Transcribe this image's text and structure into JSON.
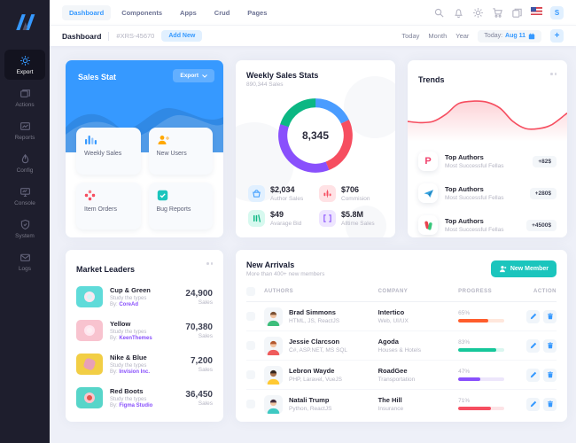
{
  "topbar": {
    "nav": [
      {
        "label": "Dashboard",
        "active": true
      },
      {
        "label": "Components",
        "active": false
      },
      {
        "label": "Apps",
        "active": false
      },
      {
        "label": "Crud",
        "active": false
      },
      {
        "label": "Pages",
        "active": false
      }
    ],
    "icons": [
      {
        "name": "search-icon"
      },
      {
        "name": "bell-icon"
      },
      {
        "name": "gear-icon"
      },
      {
        "name": "cart-icon"
      },
      {
        "name": "copy-icon"
      },
      {
        "name": "us-flag-icon"
      }
    ],
    "avatar_label": "S"
  },
  "toolbar": {
    "title": "Dashboard",
    "reference": "#XRS-45670",
    "add_new": "Add New",
    "ranges": [
      {
        "label": "Today"
      },
      {
        "label": "Month"
      },
      {
        "label": "Year"
      }
    ],
    "date_prefix": "Today:",
    "date_value": "Aug 11",
    "plus": "+"
  },
  "sidebar": {
    "items": [
      {
        "label": "Export",
        "icon": "gear-icon",
        "active": true
      },
      {
        "label": "Actions",
        "icon": "layers-icon",
        "active": false
      },
      {
        "label": "Reports",
        "icon": "report-chart-icon",
        "active": false
      },
      {
        "label": "Config",
        "icon": "droplet-icon",
        "active": false
      },
      {
        "label": "Console",
        "icon": "monitor-icon",
        "active": false
      },
      {
        "label": "System",
        "icon": "shield-icon",
        "active": false
      },
      {
        "label": "Logs",
        "icon": "mail-icon",
        "active": false
      }
    ]
  },
  "sales_stat": {
    "title": "Sales Stat",
    "export_label": "Export",
    "tiles": [
      {
        "label": "Weekly Sales",
        "icon": "bar-chart-icon",
        "color": "#3699FF"
      },
      {
        "label": "New Users",
        "icon": "user-plus-icon",
        "color": "#FFA800"
      },
      {
        "label": "Item Orders",
        "icon": "dots-diamond-icon",
        "color": "#F64E60"
      },
      {
        "label": "Bug Reports",
        "icon": "check-square-icon",
        "color": "#1BC5BD"
      }
    ]
  },
  "weekly_stats": {
    "title": "Weekly Sales Stats",
    "subtitle": "890,344 Sales",
    "stats": [
      {
        "value": "$2,034",
        "label": "Author Sales",
        "icon": "basket-icon",
        "color": "#3699FF",
        "bg": "#E1F0FF"
      },
      {
        "value": "$706",
        "label": "Commision",
        "icon": "candles-icon",
        "color": "#F64E60",
        "bg": "#FFE2E5"
      },
      {
        "value": "$49",
        "label": "Avarage Bid",
        "icon": "lines-icon",
        "color": "#0BB783",
        "bg": "#D7F9EF"
      },
      {
        "value": "$5.8M",
        "label": "Alltime Sales",
        "icon": "brackets-icon",
        "color": "#8950FC",
        "bg": "#EEE5FF"
      }
    ]
  },
  "trends": {
    "title": "Trends",
    "items": [
      {
        "title": "Top Authors",
        "subtitle": "Most Successful Fellas",
        "badge": "+82$",
        "icon": "pinterest-p-icon",
        "icon_label": "P"
      },
      {
        "title": "Top Authors",
        "subtitle": "Most Successful Fellas",
        "badge": "+280$",
        "icon": "paper-plane-icon"
      },
      {
        "title": "Top Authors",
        "subtitle": "Most Successful Fellas",
        "badge": "+4500$",
        "icon": "figma-shapes-icon"
      }
    ]
  },
  "market_leaders": {
    "title": "Market Leaders",
    "items": [
      {
        "name": "Cup & Green",
        "desc": "Study the types",
        "by_label": "By:",
        "vendor": "CoreAd",
        "value": "24,900",
        "unit": "Sales",
        "thumb": "#5FDBD9"
      },
      {
        "name": "Yellow",
        "desc": "Study the types",
        "by_label": "By:",
        "vendor": "KeenThemes",
        "value": "70,380",
        "unit": "Sales",
        "thumb": "#F8C3CF"
      },
      {
        "name": "Nike & Blue",
        "desc": "Study the types",
        "by_label": "By:",
        "vendor": "Invision Inc.",
        "value": "7,200",
        "unit": "Sales",
        "thumb": "#F2CE45"
      },
      {
        "name": "Red Boots",
        "desc": "Study the types",
        "by_label": "By:",
        "vendor": "Figma Studio",
        "value": "36,450",
        "unit": "Sales",
        "thumb": "#57D5C9"
      }
    ]
  },
  "new_arrivals": {
    "title": "New Arrivals",
    "subtitle": "More than 400+ new members",
    "new_member": "New Member",
    "columns": [
      "Authors",
      "Company",
      "Progress",
      "Action"
    ],
    "rows": [
      {
        "name": "Brad Simmons",
        "skills": "HTML, JS, ReactJS",
        "company": "Intertico",
        "company_desc": "Web, UI/UX",
        "progress_label": "65%",
        "progress_value": 65,
        "progress_color": "#FF5D2C",
        "progress_track": "#FFE7DC",
        "avatar": {
          "skin": "#F1C3A2",
          "hair": "#7A4F33",
          "shirt": "#3DBE7B"
        }
      },
      {
        "name": "Jessie Clarcson",
        "skills": "C#, ASP.NET, MS SQL",
        "company": "Agoda",
        "company_desc": "Houses & Hotels",
        "progress_label": "83%",
        "progress_value": 83,
        "progress_color": "#16C79A",
        "progress_track": "#DAF6EF",
        "avatar": {
          "skin": "#F1C3A2",
          "hair": "#B2572E",
          "shirt": "#EF5B5B"
        }
      },
      {
        "name": "Lebron Wayde",
        "skills": "PHP, Laravel, VueJS",
        "company": "RoadGee",
        "company_desc": "Transportation",
        "progress_label": "47%",
        "progress_value": 47,
        "progress_color": "#8950FC",
        "progress_track": "#EDE6FB",
        "avatar": {
          "skin": "#A9714B",
          "hair": "#33251D",
          "shirt": "#FFC933"
        }
      },
      {
        "name": "Natali Trump",
        "skills": "Python, ReactJS",
        "company": "The Hill",
        "company_desc": "Insurance",
        "progress_label": "71%",
        "progress_value": 71,
        "progress_color": "#F64E60",
        "progress_track": "#FDE3E6",
        "avatar": {
          "skin": "#F1C3A2",
          "hair": "#46303F",
          "shirt": "#3FC9C2"
        }
      }
    ]
  },
  "chart_data": [
    {
      "type": "pie",
      "title": "Weekly Sales Stats donut",
      "center_label": "8,345",
      "legend_position": "none",
      "segments": [
        {
          "name": "blue",
          "pct": 18,
          "color": "#4A9CFF"
        },
        {
          "name": "red",
          "pct": 26,
          "color": "#F64E60"
        },
        {
          "name": "purple",
          "pct": 36,
          "color": "#8950FC"
        },
        {
          "name": "green",
          "pct": 20,
          "color": "#0BB783"
        }
      ]
    },
    {
      "type": "line",
      "title": "Trends sparkline",
      "color": "#F64E60",
      "fill": "gradient-red",
      "grid": false,
      "points": [
        [
          0,
          46
        ],
        [
          8,
          48
        ],
        [
          16,
          46
        ],
        [
          24,
          34
        ],
        [
          32,
          16
        ],
        [
          42,
          12
        ],
        [
          50,
          14
        ],
        [
          58,
          24
        ],
        [
          66,
          46
        ],
        [
          74,
          58
        ],
        [
          82,
          58
        ],
        [
          90,
          52
        ],
        [
          100,
          32
        ]
      ]
    }
  ]
}
